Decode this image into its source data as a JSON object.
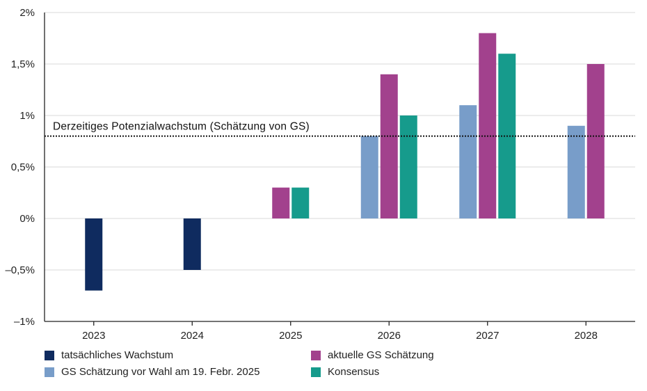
{
  "chart_data": {
    "type": "bar",
    "categories": [
      "2023",
      "2024",
      "2025",
      "2026",
      "2027",
      "2028"
    ],
    "ylim": [
      -1,
      2
    ],
    "yticks": [
      {
        "value": 2,
        "label": "2%"
      },
      {
        "value": 1.5,
        "label": "1,5%"
      },
      {
        "value": 1,
        "label": "1%"
      },
      {
        "value": 0.5,
        "label": "0,5%"
      },
      {
        "value": 0,
        "label": "0%"
      },
      {
        "value": -0.5,
        "label": "–0,5%"
      },
      {
        "value": -1,
        "label": "–1%"
      }
    ],
    "grid": true,
    "series": [
      {
        "name": "tatsächliches Wachstum",
        "color": "#0f2b5f",
        "values": [
          -0.7,
          -0.5,
          null,
          null,
          null,
          null
        ]
      },
      {
        "name": "GS Schätzung vor Wahl am 19. Febr. 2025",
        "color": "#789dc9",
        "values": [
          null,
          null,
          null,
          0.8,
          1.1,
          0.9
        ]
      },
      {
        "name": "aktuelle GS Schätzung",
        "color": "#a2418d",
        "values": [
          null,
          null,
          0.3,
          1.4,
          1.8,
          1.5
        ]
      },
      {
        "name": "Konsensus",
        "color": "#169b8c",
        "values": [
          null,
          null,
          0.3,
          1.0,
          1.6,
          null
        ]
      }
    ],
    "reference_line": {
      "value": 0.8,
      "label": "Derzeitiges Potenzialwachstum (Schätzung von GS)",
      "style": "dotted"
    },
    "legend_placement": "bottom"
  }
}
